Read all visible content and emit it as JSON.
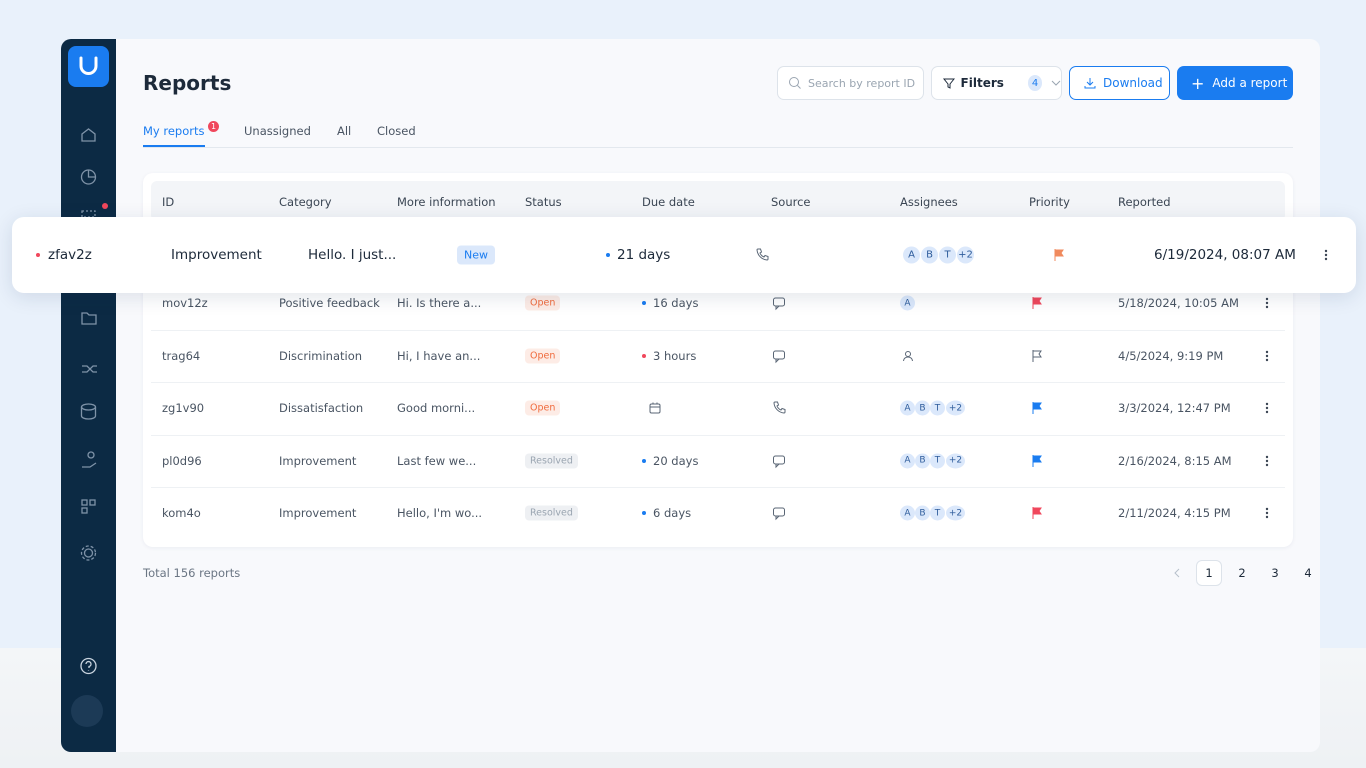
{
  "header": {
    "title": "Reports",
    "search_placeholder": "Search by report ID",
    "filters_label": "Filters",
    "filters_count": 4,
    "download_label": "Download",
    "add_label": "Add a report"
  },
  "tabs": [
    {
      "label": "My reports",
      "badge": 1
    },
    {
      "label": "Unassigned"
    },
    {
      "label": "All"
    },
    {
      "label": "Closed"
    }
  ],
  "table": {
    "columns": [
      "ID",
      "Category",
      "More information",
      "Status",
      "Due date",
      "Source",
      "Assignees",
      "Priority",
      "Reported"
    ],
    "rows": [
      {
        "id": "zfav2z",
        "category": "Improvement",
        "info": "Hello. I just...",
        "status": "New",
        "due": "21 days",
        "assignees": [
          "A",
          "B",
          "T",
          "+2"
        ],
        "reported": "6/19/2024, 08:07 AM"
      },
      {
        "id": "mov12z",
        "category": "Positive feedback",
        "info": "Hi. Is there a...",
        "status": "Open",
        "due": "16 days",
        "assignees": [
          "A"
        ],
        "reported": "5/18/2024, 10:05 AM"
      },
      {
        "id": "trag64",
        "category": "Discrimination",
        "info": "Hi, I have an...",
        "status": "Open",
        "due": "3 hours",
        "assignees": [],
        "reported": "4/5/2024, 9:19 PM"
      },
      {
        "id": "zg1v90",
        "category": "Dissatisfaction",
        "info": "Good morni...",
        "status": "Open",
        "assignees": [
          "A",
          "B",
          "T",
          "+2"
        ],
        "reported": "3/3/2024, 12:47 PM"
      },
      {
        "id": "pl0d96",
        "category": "Improvement",
        "info": "Last few we...",
        "status": "Resolved",
        "due": "20 days",
        "assignees": [
          "A",
          "B",
          "T",
          "+2"
        ],
        "reported": "2/16/2024, 8:15 AM"
      },
      {
        "id": "kom4o",
        "category": "Improvement",
        "info": "Hello, I'm wo...",
        "status": "Resolved",
        "due": "6 days",
        "assignees": [
          "A",
          "B",
          "T",
          "+2"
        ],
        "reported": "2/11/2024, 4:15 PM"
      }
    ]
  },
  "footer": {
    "total": "Total 156 reports",
    "pages": [
      1,
      2,
      3,
      4
    ]
  }
}
